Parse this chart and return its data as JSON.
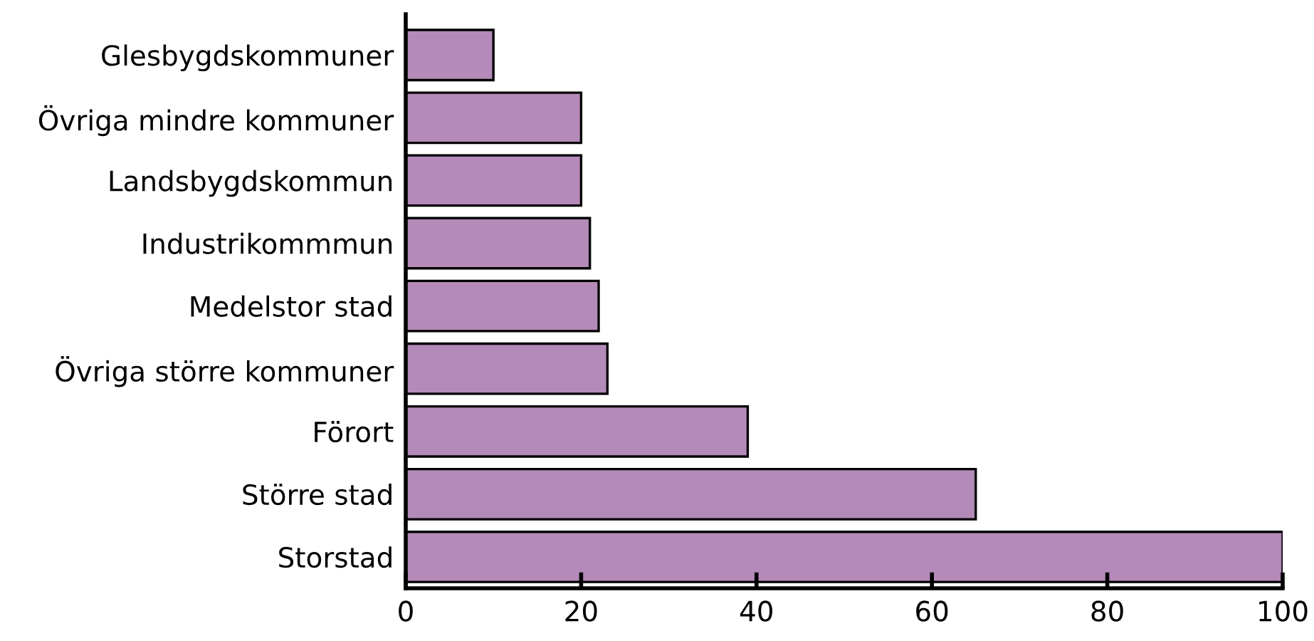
{
  "chart_data": {
    "type": "bar",
    "orientation": "horizontal",
    "categories": [
      "Glesbygdskommuner",
      "Övriga mindre kommuner",
      "Landsbygdskommun",
      "Industrikommmun",
      "Medelstor stad",
      "Övriga större kommuner",
      "Förort",
      "Större stad",
      "Storstad"
    ],
    "values": [
      10,
      20,
      20,
      21,
      22,
      23,
      39,
      65,
      100
    ],
    "color": "#b48ab8",
    "xlim": [
      0,
      100
    ],
    "xticks": [
      0,
      20,
      40,
      60,
      80,
      100
    ],
    "grid": false,
    "legend": false
  }
}
